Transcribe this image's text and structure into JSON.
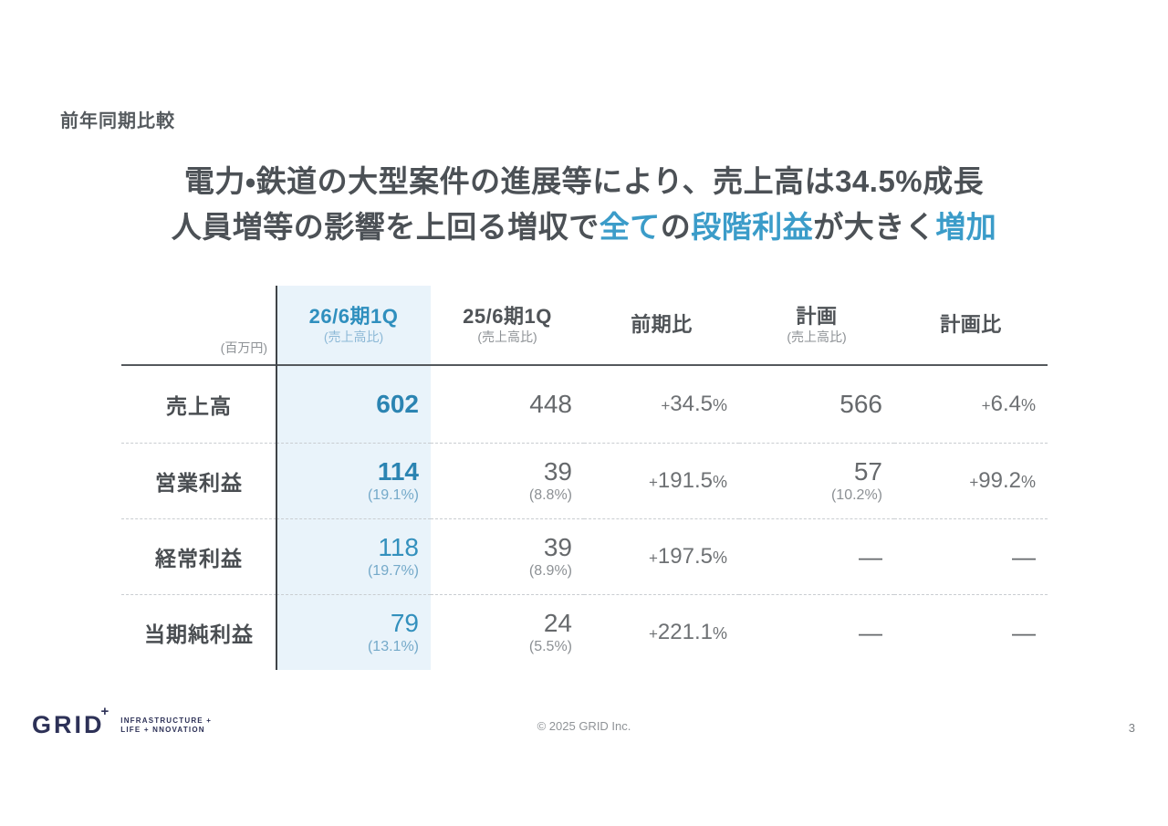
{
  "kicker": "前年同期比較",
  "title": {
    "line1": [
      {
        "text": "電力・鉄道の大型案件の進展等により、売上高は34.5%成長",
        "color": "dark"
      }
    ],
    "line2": [
      {
        "text": "人員増等の影響を上回る増収で",
        "color": "dark"
      },
      {
        "text": "全て",
        "color": "accent"
      },
      {
        "text": "の",
        "color": "dark"
      },
      {
        "text": "段階利益",
        "color": "accent"
      },
      {
        "text": "が大きく",
        "color": "dark"
      },
      {
        "text": "増加",
        "color": "accent"
      }
    ]
  },
  "table": {
    "unit_note": "(百万円)",
    "columns": [
      {
        "label": "26/6期1Q",
        "sub": "(売上高比)",
        "highlight": true
      },
      {
        "label": "25/6期1Q",
        "sub": "(売上高比)",
        "highlight": false
      },
      {
        "label": "前期比",
        "sub": "",
        "highlight": false
      },
      {
        "label": "計画",
        "sub": "(売上高比)",
        "highlight": false
      },
      {
        "label": "計画比",
        "sub": "",
        "highlight": false
      }
    ],
    "rows": [
      {
        "label": "売上高",
        "current": {
          "value": "602",
          "sub": "",
          "strong": true
        },
        "prior": {
          "value": "448",
          "sub": ""
        },
        "yoy": "+34.5%",
        "plan": {
          "value": "566",
          "sub": ""
        },
        "plan_ratio": "+6.4%"
      },
      {
        "label": "営業利益",
        "current": {
          "value": "114",
          "sub": "(19.1%)",
          "strong": true
        },
        "prior": {
          "value": "39",
          "sub": "(8.8%)"
        },
        "yoy": "+191.5%",
        "plan": {
          "value": "57",
          "sub": "(10.2%)"
        },
        "plan_ratio": "+99.2%"
      },
      {
        "label": "経常利益",
        "current": {
          "value": "118",
          "sub": "(19.7%)",
          "strong": false
        },
        "prior": {
          "value": "39",
          "sub": "(8.9%)"
        },
        "yoy": "+197.5%",
        "plan": {
          "value": "—",
          "sub": ""
        },
        "plan_ratio": "—"
      },
      {
        "label": "当期純利益",
        "current": {
          "value": "79",
          "sub": "(13.1%)",
          "strong": false
        },
        "prior": {
          "value": "24",
          "sub": "(5.5%)"
        },
        "yoy": "+221.1%",
        "plan": {
          "value": "—",
          "sub": ""
        },
        "plan_ratio": "—"
      }
    ]
  },
  "footer": {
    "copyright": "© 2025 GRID Inc.",
    "page_number": "3"
  },
  "logo": {
    "brand": "GRID",
    "plus": "+",
    "tagline_line1": "INFRASTRUCTURE +",
    "tagline_line2": "LIFE + NNOVATION"
  },
  "colors": {
    "accent_blue": "#3b9cc9",
    "table_blue_strong": "#2b84b2",
    "table_blue_light": "#74a9c9",
    "highlight_bg": "#e9f3fa",
    "dark_text": "#4c5156",
    "gray_text": "#66696c",
    "light_gray_text": "#8c9094",
    "logo_navy": "#2d3157"
  }
}
